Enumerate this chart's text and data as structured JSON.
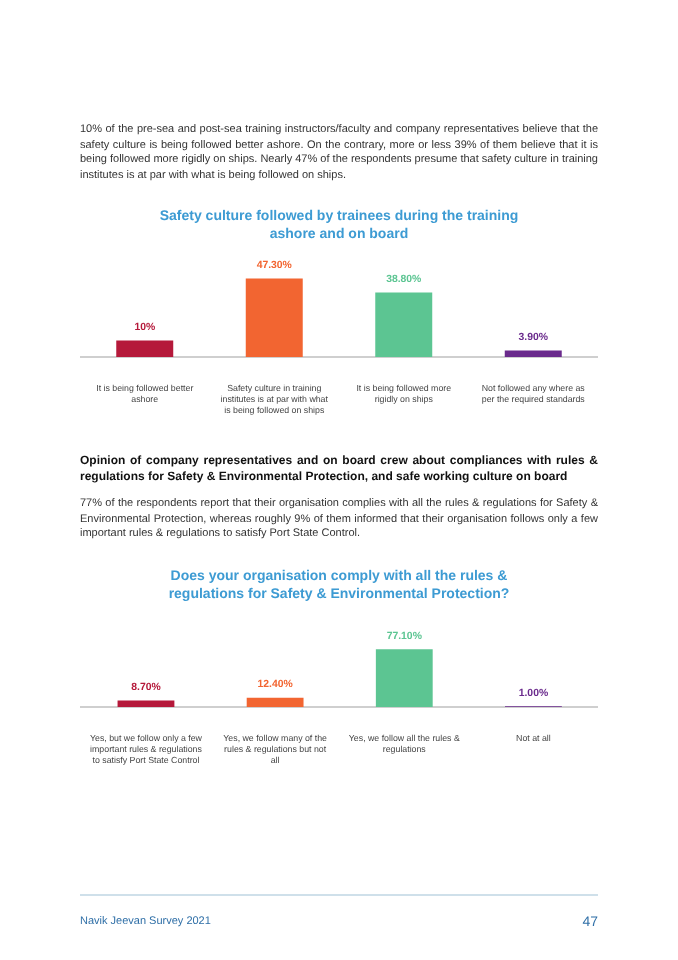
{
  "chart_data": [
    {
      "type": "bar",
      "title": "Safety culture followed by trainees during the training ashore and on board",
      "categories": [
        "It is being followed better ashore",
        "Safety culture in training institutes is at par with what is being followed on ships",
        "It is being followed more rigidly on ships",
        "Not followed any where as per the required standards"
      ],
      "values": [
        10,
        47.3,
        38.8,
        3.9
      ],
      "colors": [
        "#b5193a",
        "#f26531",
        "#5cc592",
        "#6a2a8c"
      ],
      "value_labels": [
        "10%",
        "47.30%",
        "38.80%",
        "3.90%"
      ],
      "annotations": [
        "10% of the pre-sea and post-sea training instructors/faculty and company representatives believe that the safety culture is being followed better ashore. On the contrary, more or less 39% of them believe that it is being followed more rigidly on ships. Nearly 47% of the respondents presume that safety culture in training institutes is at par with what is being followed on ships."
      ]
    },
    {
      "type": "bar",
      "title": "Does your organisation comply with all the rules & regulations for Safety & Environmental Protection?",
      "categories": [
        "Yes, but we follow only a few important rules & regulations to satisfy Port State Control",
        "Yes, we follow many of the rules & regulations but not all",
        "Yes, we follow all the rules & regulations",
        "Not at all"
      ],
      "values": [
        8.7,
        12.4,
        77.1,
        1
      ],
      "colors": [
        "#b5193a",
        "#f26531",
        "#5cc592",
        "#6a2a8c"
      ],
      "value_labels": [
        "8.70%",
        "12.40%",
        "77.10%",
        "1.00%"
      ],
      "annotations": [
        "Opinion of company representatives and on board crew about compliances with rules & regulations for Safety & Environmental Protection, and safe working culture on board",
        "77% of the respondents report that their organisation complies with all the rules & regulations for Safety & Environmental Protection, whereas roughly 9% of them informed that their organisation follows only a few important rules & regulations to satisfy Port State Control.",
        "Navik Jeevan Survey 2021",
        "47"
      ]
    }
  ]
}
